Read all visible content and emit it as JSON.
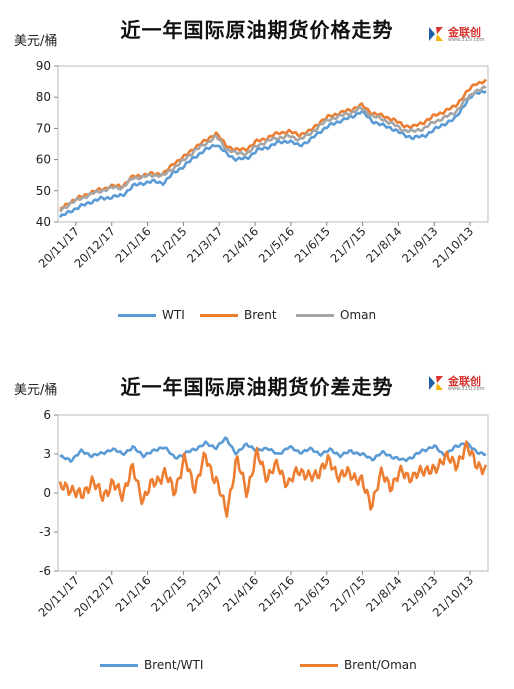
{
  "chart_data": [
    {
      "type": "line",
      "title": "近一年国际原油期货价格走势",
      "ylabel": "美元/桶",
      "ylim": [
        40,
        90
      ],
      "yticks": [
        40,
        50,
        60,
        70,
        80,
        90
      ],
      "x_tick_labels": [
        "20/11/17",
        "20/12/17",
        "21/1/16",
        "21/2/15",
        "21/3/17",
        "21/4/16",
        "21/5/16",
        "21/6/15",
        "21/7/15",
        "21/8/14",
        "21/9/13",
        "21/10/13"
      ],
      "series": [
        {
          "name": "WTI",
          "color": "#5b9bd5",
          "values": [
            41.5,
            43.5,
            45.0,
            46.5,
            47.5,
            48.0,
            48.5,
            51.5,
            52.5,
            53.0,
            52.5,
            56.0,
            58.0,
            61.0,
            63.0,
            65.0,
            62.0,
            60.0,
            60.5,
            63.0,
            64.0,
            65.5,
            66.0,
            64.5,
            66.0,
            69.0,
            71.0,
            72.5,
            73.5,
            75.5,
            72.5,
            71.0,
            70.0,
            68.0,
            67.0,
            67.5,
            69.5,
            71.5,
            73.0,
            78.0,
            81.5,
            82.0
          ]
        },
        {
          "name": "Brent",
          "color": "#ed7d31",
          "values": [
            44.0,
            46.5,
            48.0,
            49.5,
            50.5,
            51.5,
            51.5,
            54.5,
            55.0,
            55.5,
            55.5,
            59.0,
            61.0,
            64.0,
            66.0,
            68.5,
            64.5,
            63.0,
            63.5,
            66.0,
            67.0,
            68.5,
            69.0,
            68.0,
            69.0,
            72.0,
            74.0,
            75.0,
            76.0,
            77.5,
            75.0,
            74.0,
            73.0,
            71.0,
            70.5,
            72.0,
            74.0,
            75.5,
            77.0,
            81.0,
            84.5,
            85.0
          ]
        },
        {
          "name": "Oman",
          "color": "#a5a5a5",
          "values": [
            43.5,
            46.0,
            47.5,
            49.0,
            50.0,
            51.0,
            51.0,
            54.0,
            54.5,
            55.0,
            55.0,
            57.5,
            60.0,
            63.0,
            65.0,
            67.5,
            63.5,
            62.0,
            62.0,
            64.5,
            66.0,
            67.0,
            67.5,
            66.5,
            68.0,
            71.0,
            73.0,
            74.0,
            75.0,
            76.5,
            74.0,
            73.0,
            71.5,
            69.5,
            69.0,
            70.0,
            72.0,
            73.5,
            75.0,
            79.0,
            82.0,
            83.0
          ]
        }
      ]
    },
    {
      "type": "line",
      "title": "近一年国际原油期货价差走势",
      "ylabel": "美元/桶",
      "ylim": [
        -6,
        6
      ],
      "yticks": [
        -6,
        -3,
        0,
        3,
        6
      ],
      "x_tick_labels": [
        "20/11/17",
        "20/12/17",
        "21/1/16",
        "21/2/15",
        "21/3/17",
        "21/4/16",
        "21/5/16",
        "21/6/15",
        "21/7/15",
        "21/8/14",
        "21/9/13",
        "21/10/13"
      ],
      "series": [
        {
          "name": "Brent/WTI",
          "color": "#5b9bd5",
          "values": [
            2.8,
            2.5,
            3.2,
            2.9,
            3.0,
            3.4,
            3.0,
            3.5,
            2.9,
            3.2,
            3.6,
            2.7,
            3.0,
            3.4,
            3.8,
            3.5,
            4.2,
            3.0,
            3.8,
            3.2,
            3.5,
            2.9,
            3.6,
            3.1,
            3.4,
            3.0,
            3.3,
            2.9,
            3.2,
            3.0,
            2.6,
            3.1,
            2.8,
            2.5,
            2.8,
            3.3,
            3.6,
            2.9,
            3.5,
            3.9,
            3.2,
            3.0
          ]
        },
        {
          "name": "Brent/Oman",
          "color": "#ed7d31",
          "values": [
            0.3,
            0.5,
            -0.4,
            1.0,
            -0.2,
            0.6,
            0.0,
            1.8,
            -0.5,
            0.8,
            1.5,
            0.2,
            2.5,
            0.5,
            2.8,
            1.0,
            -1.5,
            2.5,
            0.2,
            3.0,
            1.2,
            2.2,
            0.5,
            2.0,
            1.0,
            1.8,
            2.4,
            1.2,
            1.6,
            0.8,
            -0.8,
            1.5,
            0.5,
            1.8,
            1.0,
            2.0,
            1.5,
            3.0,
            2.0,
            3.5,
            2.5,
            1.5
          ]
        }
      ]
    }
  ],
  "legend_1": [
    {
      "label": "WTI",
      "color": "#5b9bd5"
    },
    {
      "label": "Brent",
      "color": "#ed7d31"
    },
    {
      "label": "Oman",
      "color": "#a5a5a5"
    }
  ],
  "legend_2": [
    {
      "label": "Brent/WTI",
      "color": "#5b9bd5"
    },
    {
      "label": "Brent/Oman",
      "color": "#ed7d31"
    }
  ],
  "logo": {
    "name": "金联创",
    "url": "www.315i.com",
    "colors": {
      "primary": "#d7322e",
      "secondary": "#1f5fa8",
      "accent": "#f4b400"
    }
  }
}
